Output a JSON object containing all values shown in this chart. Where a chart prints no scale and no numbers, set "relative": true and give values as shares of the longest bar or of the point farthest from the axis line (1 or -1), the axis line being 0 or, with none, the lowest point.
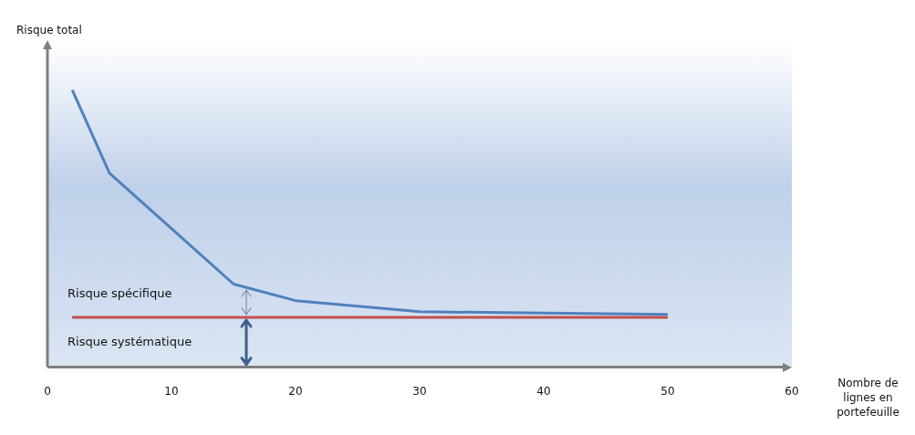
{
  "chart_data": {
    "type": "line",
    "relative": true,
    "ylabel": "Risque total",
    "xlabel": "Nombre de lignes en portefeuille",
    "xlim": [
      0,
      60
    ],
    "xticks": [
      0,
      10,
      20,
      30,
      40,
      50,
      60
    ],
    "grid": false,
    "legend": false,
    "marker": "none",
    "annotations": [
      "Risque spécifique",
      "Risque systématique"
    ],
    "series": [
      {
        "color": "#4f81bd",
        "x": [
          2,
          5,
          15,
          20,
          30,
          50
        ],
        "values": [
          1,
          0.7,
          0.3,
          0.24,
          0.2,
          0.19
        ]
      },
      {
        "color": "#c0504d",
        "x": [
          2,
          50
        ],
        "values": [
          0.18,
          0.18
        ]
      }
    ]
  }
}
